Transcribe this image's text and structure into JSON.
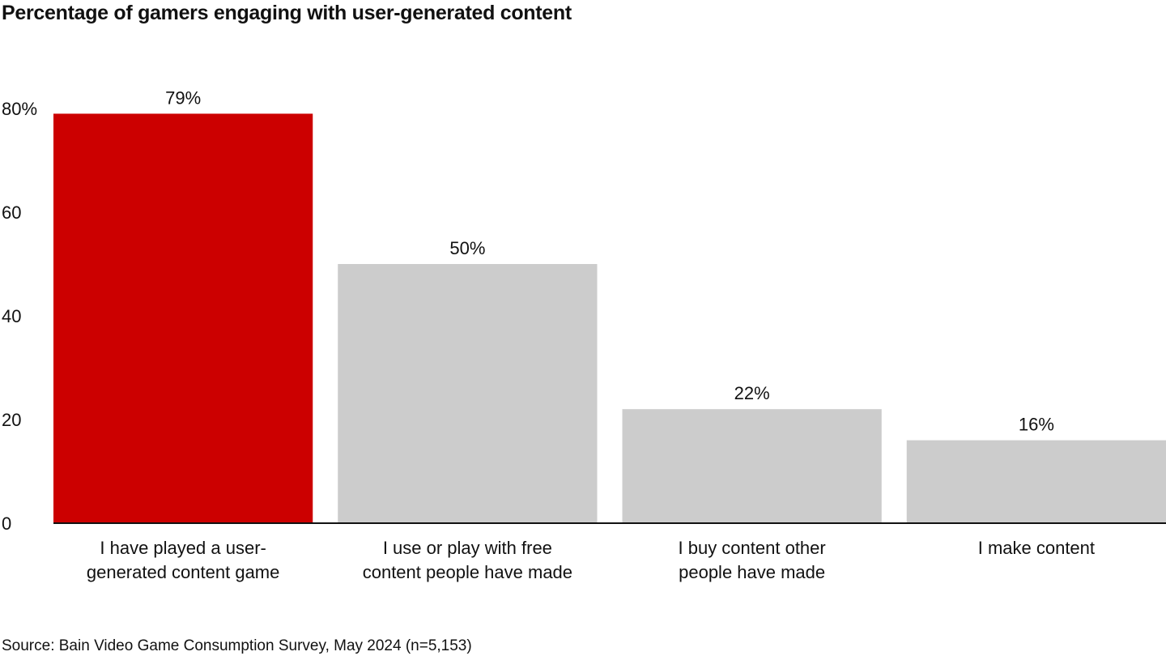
{
  "title": "Percentage of gamers engaging with user-generated content",
  "source": "Source: Bain Video Game Consumption Survey, May 2024 (n=5,153)",
  "colors": {
    "highlight": "#cc0000",
    "default": "#cccccc",
    "axis": "#111111"
  },
  "chart_data": {
    "type": "bar",
    "categories": [
      [
        "I have played a user-",
        "generated content game"
      ],
      [
        "I use or play with free",
        "content people have made"
      ],
      [
        "I buy content other",
        "people have made"
      ],
      [
        "I make content"
      ]
    ],
    "values": [
      79,
      50,
      22,
      16
    ],
    "data_labels": [
      "79%",
      "50%",
      "22%",
      "16%"
    ],
    "highlight_index": 0,
    "yticks": [
      0,
      20,
      40,
      60,
      80
    ],
    "ytick_labels": [
      "0",
      "20",
      "40",
      "60",
      "80%"
    ],
    "ylim": [
      0,
      80
    ],
    "grid": false,
    "legend": "none"
  }
}
